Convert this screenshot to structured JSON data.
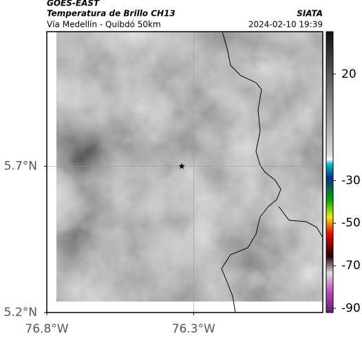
{
  "header": {
    "source": "GOES-EAST",
    "title": "Temperatura de Brillo CH13",
    "subtitle": "Vía Medellín - Quibdó 50km",
    "brand": "SIATA",
    "datetime": "2024-02-10 19:39"
  },
  "map": {
    "xlim": [
      -76.8,
      -75.86
    ],
    "ylim": [
      5.2,
      6.16
    ],
    "xticks": [
      {
        "value": -76.8,
        "label": "76.8°W"
      },
      {
        "value": -76.3,
        "label": "76.3°W"
      }
    ],
    "yticks": [
      {
        "value": 5.2,
        "label": "5.2°N"
      },
      {
        "value": 5.7,
        "label": "5.7°N"
      }
    ],
    "marker": {
      "lon": -76.34,
      "lat": 5.7
    }
  },
  "colorbar": {
    "range": [
      40,
      -92
    ],
    "ticks": [
      20,
      -30,
      -50,
      -70,
      -90
    ]
  }
}
